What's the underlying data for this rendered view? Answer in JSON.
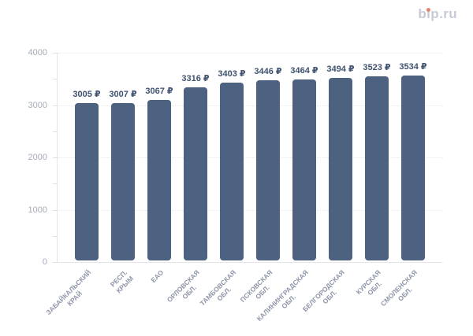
{
  "logo": {
    "text": "bip.ru",
    "text_color": "#c6cad6",
    "dot_color": "#e8826e"
  },
  "chart_data": {
    "type": "bar",
    "title": "",
    "xlabel": "",
    "ylabel": "",
    "unit": "₽",
    "categories": [
      "ЗАБАЙКАЛЬСКИЙ КРАЙ",
      "РЕСП. КРЫМ",
      "ЕАО",
      "ОРЛОВСКАЯ ОБЛ.",
      "ТАМБОВСКАЯ ОБЛ.",
      "ПСКОВСКАЯ ОБЛ.",
      "КАЛИНИНГРАДСКАЯ ОБЛ.",
      "БЕЛГОРОДСКАЯ ОБЛ.",
      "КУРСКАЯ ОБЛ.",
      "СМОЛЕНСКАЯ ОБЛ."
    ],
    "categories_display": [
      "ЗАБАЙКАЛЬСКИЙ\nКРАЙ",
      "РЕСП. КРЫМ",
      "ЕАО",
      "ОРЛОВСКАЯ\nОБЛ.",
      "ТАМБОВСКАЯ\nОБЛ.",
      "ПСКОВСКАЯ\nОБЛ.",
      "КАЛИНИНГРАДСКАЯ\nОБЛ.",
      "БЕЛГОРОДСКАЯ\nОБЛ.",
      "КУРСКАЯ ОБЛ.",
      "СМОЛЕНСКАЯ\nОБЛ."
    ],
    "values": [
      3005,
      3007,
      3067,
      3316,
      3403,
      3446,
      3464,
      3494,
      3523,
      3534
    ],
    "value_labels": [
      "3005 ₽",
      "3007 ₽",
      "3067 ₽",
      "3316 ₽",
      "3403 ₽",
      "3446 ₽",
      "3464 ₽",
      "3494 ₽",
      "3523 ₽",
      "3534 ₽"
    ],
    "ylim": [
      0,
      4000
    ],
    "ytick_labels": [
      "4000",
      "3000",
      "2000",
      "1000",
      "0"
    ],
    "minor_tick_step": 500,
    "grid": "horizontal-dotted",
    "legend": "none",
    "bar_color": "#4d6280"
  }
}
